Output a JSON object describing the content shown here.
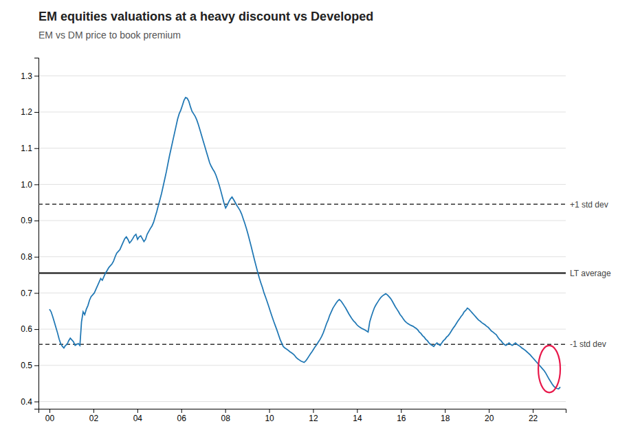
{
  "chart_data": {
    "type": "line",
    "title": "EM equities valuations at a heavy discount vs Developed",
    "subtitle": "EM vs DM price to book premium",
    "x": [
      2000,
      2000.0729,
      2000.1458,
      2000.2187,
      2000.2915,
      2000.3644,
      2000.4373,
      2000.5102,
      2000.5831,
      2000.656,
      2000.7288,
      2000.8017,
      2000.8746,
      2000.9475,
      2001.0204,
      2001.0933,
      2001.1661,
      2001.239,
      2001.3119,
      2001.3848,
      2001.4577,
      2001.5306,
      2001.6034,
      2001.6763,
      2001.7492,
      2001.8221,
      2001.895,
      2001.9679,
      2002.0408,
      2002.1136,
      2002.1865,
      2002.2594,
      2002.3323,
      2002.4052,
      2002.4781,
      2002.5509,
      2002.6238,
      2002.6967,
      2002.7696,
      2002.8425,
      2002.9154,
      2002.9882,
      2003.0611,
      2003.134,
      2003.2069,
      2003.2798,
      2003.3527,
      2003.4255,
      2003.4984,
      2003.5713,
      2003.6442,
      2003.7171,
      2003.79,
      2003.8629,
      2003.9357,
      2004.0086,
      2004.0815,
      2004.1544,
      2004.2273,
      2004.3002,
      2004.373,
      2004.4459,
      2004.5188,
      2004.5917,
      2004.6646,
      2004.7375,
      2004.8103,
      2004.8832,
      2004.9561,
      2005.029,
      2005.1019,
      2005.1748,
      2005.2476,
      2005.3205,
      2005.3934,
      2005.4663,
      2005.5392,
      2005.6121,
      2005.685,
      2005.7578,
      2005.8307,
      2005.9036,
      2005.9765,
      2006.0494,
      2006.1223,
      2006.1951,
      2006.268,
      2006.3409,
      2006.4138,
      2006.4867,
      2006.5596,
      2006.6324,
      2006.7053,
      2006.7782,
      2006.8511,
      2006.924,
      2006.9969,
      2007.0697,
      2007.1426,
      2007.2155,
      2007.2884,
      2007.3613,
      2007.4342,
      2007.5071,
      2007.5799,
      2007.6528,
      2007.7257,
      2007.7986,
      2007.8715,
      2007.9444,
      2008.0172,
      2008.0901,
      2008.163,
      2008.2359,
      2008.3088,
      2008.3817,
      2008.4545,
      2008.5274,
      2008.6003,
      2008.6732,
      2008.7461,
      2008.819,
      2008.8918,
      2008.9647,
      2009.0376,
      2009.1105,
      2009.1834,
      2009.2563,
      2009.3292,
      2009.402,
      2009.4749,
      2009.5478,
      2009.6207,
      2009.6936,
      2009.7665,
      2009.8393,
      2009.9122,
      2009.9851,
      2010.058,
      2010.1309,
      2010.2038,
      2010.2766,
      2010.3495,
      2010.4224,
      2010.4953,
      2010.5682,
      2010.6411,
      2010.7139,
      2010.7868,
      2010.8597,
      2010.9326,
      2011.0055,
      2011.0784,
      2011.1513,
      2011.2241,
      2011.297,
      2011.3699,
      2011.4428,
      2011.5157,
      2011.5886,
      2011.6614,
      2011.7343,
      2011.8072,
      2011.8801,
      2011.953,
      2012.0259,
      2012.0987,
      2012.1716,
      2012.2445,
      2012.3174,
      2012.3903,
      2012.4632,
      2012.5361,
      2012.6089,
      2012.6818,
      2012.7547,
      2012.8276,
      2012.9005,
      2012.9734,
      2013.0462,
      2013.1191,
      2013.192,
      2013.2649,
      2013.3378,
      2013.4107,
      2013.4835,
      2013.5564,
      2013.6293,
      2013.7022,
      2013.7751,
      2013.848,
      2013.9208,
      2013.9937,
      2014.0666,
      2014.1395,
      2014.2124,
      2014.2853,
      2014.3582,
      2014.431,
      2014.5039,
      2014.5768,
      2014.6497,
      2014.7226,
      2014.7955,
      2014.8683,
      2014.9412,
      2015.0141,
      2015.087,
      2015.1599,
      2015.2328,
      2015.3056,
      2015.3785,
      2015.4514,
      2015.5243,
      2015.5972,
      2015.6701,
      2015.7429,
      2015.8158,
      2015.8887,
      2015.9616,
      2016.0345,
      2016.1074,
      2016.1803,
      2016.2531,
      2016.326,
      2016.3989,
      2016.4718,
      2016.5447,
      2016.6176,
      2016.6904,
      2016.7633,
      2016.8362,
      2016.9091,
      2016.982,
      2017.0549,
      2017.1277,
      2017.2006,
      2017.2735,
      2017.3464,
      2017.4193,
      2017.4922,
      2017.565,
      2017.6379,
      2017.7108,
      2017.7837,
      2017.8566,
      2017.9295,
      2018.0024,
      2018.0752,
      2018.1481,
      2018.221,
      2018.2939,
      2018.3668,
      2018.4397,
      2018.5125,
      2018.5854,
      2018.6583,
      2018.7312,
      2018.8041,
      2018.877,
      2018.9498,
      2019.0227,
      2019.0956,
      2019.1685,
      2019.2414,
      2019.3143,
      2019.3871,
      2019.46,
      2019.5329,
      2019.6058,
      2019.6787,
      2019.7516,
      2019.8245,
      2019.8973,
      2019.9702,
      2020.0431,
      2020.116,
      2020.1889,
      2020.2618,
      2020.3346,
      2020.4075,
      2020.4804,
      2020.5533,
      2020.6262,
      2020.6991,
      2020.7719,
      2020.8448,
      2020.9177,
      2020.9906,
      2021.0635,
      2021.1364,
      2021.2092,
      2021.2821,
      2021.355,
      2021.4279,
      2021.5008,
      2021.5737,
      2021.6466,
      2021.7194,
      2021.7923,
      2021.8652,
      2021.9381,
      2022.011,
      2022.0839,
      2022.1567,
      2022.2296,
      2022.3025,
      2022.3754,
      2022.4483,
      2022.5212,
      2022.594,
      2022.6669,
      2022.7398,
      2022.8127,
      2022.8856,
      2022.9585,
      2023.0313,
      2023.1042,
      2023.1771,
      2023.25
    ],
    "series": [
      {
        "values": [
          0.655,
          0.648,
          0.635,
          0.62,
          0.605,
          0.59,
          0.573,
          0.56,
          0.553,
          0.548,
          0.555,
          0.558,
          0.568,
          0.575,
          0.57,
          0.565,
          0.555,
          0.558,
          0.56,
          0.555,
          0.62,
          0.648,
          0.64,
          0.655,
          0.665,
          0.68,
          0.69,
          0.695,
          0.7,
          0.71,
          0.72,
          0.73,
          0.74,
          0.735,
          0.745,
          0.755,
          0.762,
          0.77,
          0.775,
          0.78,
          0.788,
          0.8,
          0.81,
          0.815,
          0.82,
          0.83,
          0.84,
          0.85,
          0.855,
          0.848,
          0.838,
          0.843,
          0.85,
          0.858,
          0.862,
          0.848,
          0.855,
          0.858,
          0.85,
          0.842,
          0.848,
          0.862,
          0.87,
          0.878,
          0.885,
          0.895,
          0.91,
          0.925,
          0.942,
          0.958,
          0.975,
          0.995,
          1.015,
          1.035,
          1.058,
          1.08,
          1.1,
          1.12,
          1.14,
          1.16,
          1.18,
          1.195,
          1.205,
          1.218,
          1.232,
          1.24,
          1.238,
          1.23,
          1.215,
          1.202,
          1.195,
          1.188,
          1.178,
          1.165,
          1.15,
          1.135,
          1.12,
          1.105,
          1.09,
          1.075,
          1.06,
          1.05,
          1.042,
          1.035,
          1.025,
          1.012,
          0.998,
          0.982,
          0.965,
          0.948,
          0.935,
          0.942,
          0.952,
          0.96,
          0.965,
          0.958,
          0.95,
          0.942,
          0.935,
          0.928,
          0.918,
          0.905,
          0.892,
          0.878,
          0.862,
          0.845,
          0.828,
          0.81,
          0.792,
          0.775,
          0.758,
          0.742,
          0.728,
          0.715,
          0.7,
          0.688,
          0.675,
          0.662,
          0.648,
          0.635,
          0.622,
          0.61,
          0.598,
          0.585,
          0.572,
          0.562,
          0.552,
          0.548,
          0.545,
          0.542,
          0.538,
          0.535,
          0.532,
          0.528,
          0.522,
          0.518,
          0.515,
          0.512,
          0.51,
          0.508,
          0.512,
          0.518,
          0.525,
          0.532,
          0.538,
          0.545,
          0.552,
          0.558,
          0.565,
          0.572,
          0.58,
          0.59,
          0.602,
          0.615,
          0.625,
          0.638,
          0.648,
          0.658,
          0.665,
          0.672,
          0.678,
          0.682,
          0.678,
          0.672,
          0.665,
          0.658,
          0.65,
          0.642,
          0.635,
          0.628,
          0.622,
          0.618,
          0.612,
          0.608,
          0.605,
          0.602,
          0.6,
          0.598,
          0.595,
          0.592,
          0.62,
          0.635,
          0.648,
          0.66,
          0.668,
          0.675,
          0.682,
          0.688,
          0.692,
          0.695,
          0.698,
          0.695,
          0.69,
          0.685,
          0.678,
          0.67,
          0.662,
          0.655,
          0.648,
          0.64,
          0.635,
          0.628,
          0.622,
          0.618,
          0.615,
          0.612,
          0.61,
          0.608,
          0.605,
          0.602,
          0.598,
          0.592,
          0.588,
          0.582,
          0.578,
          0.572,
          0.568,
          0.562,
          0.558,
          0.555,
          0.552,
          0.558,
          0.562,
          0.558,
          0.555,
          0.562,
          0.568,
          0.572,
          0.578,
          0.582,
          0.588,
          0.595,
          0.602,
          0.608,
          0.615,
          0.622,
          0.628,
          0.635,
          0.64,
          0.648,
          0.652,
          0.658,
          0.655,
          0.65,
          0.645,
          0.64,
          0.635,
          0.63,
          0.625,
          0.622,
          0.618,
          0.615,
          0.612,
          0.608,
          0.605,
          0.6,
          0.595,
          0.592,
          0.588,
          0.585,
          0.578,
          0.572,
          0.568,
          0.562,
          0.558,
          0.555,
          0.558,
          0.562,
          0.558,
          0.555,
          0.558,
          0.562,
          0.558,
          0.555,
          0.552,
          0.548,
          0.545,
          0.542,
          0.538,
          0.534,
          0.53,
          0.525,
          0.52,
          0.515,
          0.51,
          0.505,
          0.5,
          0.495,
          0.49,
          0.485,
          0.478,
          0.47,
          0.462,
          0.455,
          0.448,
          0.442,
          0.438,
          0.436,
          0.435,
          0.44
        ]
      }
    ],
    "reference_lines": [
      {
        "value": 0.755,
        "label": "LT average",
        "line_style": "solid"
      },
      {
        "value": 0.945,
        "label": "+1 std dev",
        "line_style": "dashed"
      },
      {
        "value": 0.558,
        "label": "-1 std dev",
        "line_style": "dashed"
      }
    ],
    "highlight": {
      "x": 2022.75,
      "y": 0.49,
      "width": 1.0,
      "height": 0.13,
      "color": "#e8184a"
    },
    "xlim": [
      1999.5,
      2023.5
    ],
    "xticks": [
      {
        "value": 2000,
        "label": "00"
      },
      {
        "value": 2002,
        "label": "02"
      },
      {
        "value": 2004,
        "label": "04"
      },
      {
        "value": 2006,
        "label": "06"
      },
      {
        "value": 2008,
        "label": "08"
      },
      {
        "value": 2010,
        "label": "10"
      },
      {
        "value": 2012,
        "label": "12"
      },
      {
        "value": 2014,
        "label": "14"
      },
      {
        "value": 2016,
        "label": "16"
      },
      {
        "value": 2018,
        "label": "18"
      },
      {
        "value": 2020,
        "label": "20"
      },
      {
        "value": 2022,
        "label": "22"
      }
    ],
    "ylim": [
      0.38,
      1.35
    ],
    "yticks": [
      0.4,
      0.5,
      0.6,
      0.7,
      0.8,
      0.9,
      {
        "value": 1.0,
        "label": "1.0"
      },
      1.1,
      1.2,
      1.3
    ],
    "grid": "y"
  }
}
